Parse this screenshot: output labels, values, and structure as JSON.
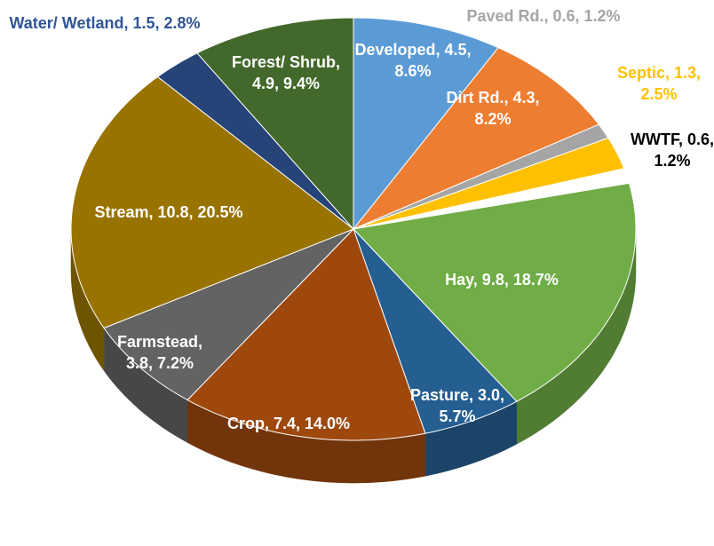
{
  "chart_data": {
    "type": "pie",
    "categories": [
      "Developed, 4.5, 8.6%",
      "Dirt Rd., 4.3, 8.2%",
      "Paved Rd., 0.6, 1.2%",
      "Septic, 1.3, 2.5%",
      "WWTF, 0.6, 1.2%",
      "Hay, 9.8, 18.7%",
      "Pasture, 3.0, 5.7%",
      "Crop, 7.4, 14.0%",
      "Farmstead, 3.8, 7.2%",
      "Stream, 10.8, 20.5%",
      "Water/ Wetland, 1.5, 2.8%",
      "Forest/ Shrub, 4.9, 9.4%"
    ],
    "values": [
      4.5,
      4.3,
      0.6,
      1.3,
      0.6,
      9.8,
      3.0,
      7.4,
      3.8,
      10.8,
      1.5,
      4.9
    ],
    "colors": [
      "#5b9bd5",
      "#ed7d31",
      "#a5a5a5",
      "#ffc000",
      "#ffffff",
      "#70ad47",
      "#255e91",
      "#9e480e",
      "#636363",
      "#997300",
      "#264478",
      "#43682b"
    ]
  }
}
